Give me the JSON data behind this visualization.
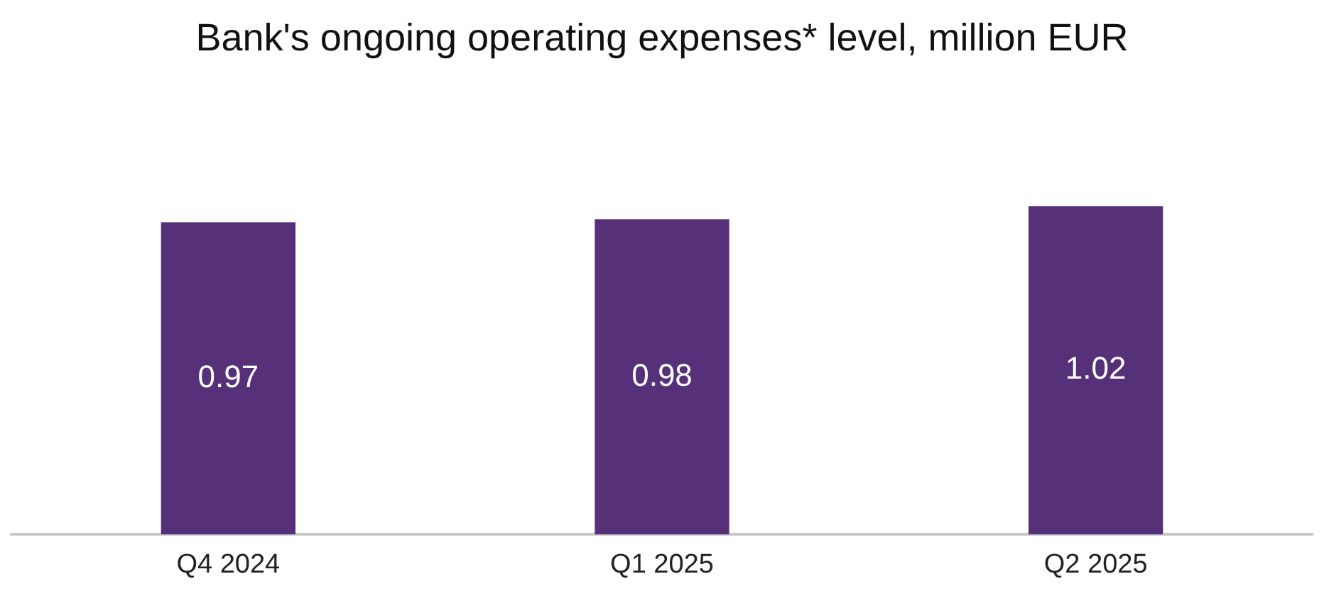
{
  "chart_data": {
    "type": "bar",
    "title": "Bank's ongoing operating expenses* level, million EUR",
    "categories": [
      "Q4 2024",
      "Q1 2025",
      "Q2 2025"
    ],
    "values": [
      0.97,
      0.98,
      1.02
    ],
    "color": "#56317a",
    "data_labels": true,
    "grid": false,
    "legend": false
  }
}
